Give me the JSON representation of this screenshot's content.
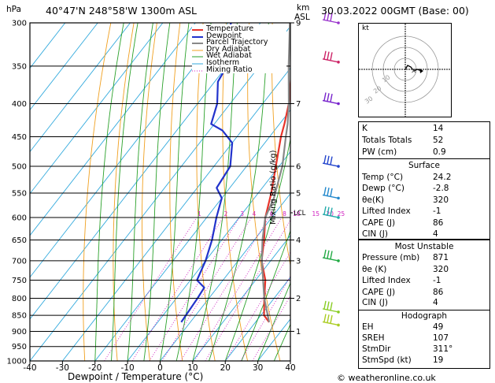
{
  "header": {
    "hpa_label": "hPa",
    "station": "40°47'N 248°58'W 1300m ASL",
    "km_label": "km",
    "asl_label": "ASL",
    "datetime": "30.03.2022 00GMT (Base: 00)"
  },
  "legend": [
    {
      "label": "Temperature",
      "color": "#e8332a"
    },
    {
      "label": "Dewpoint",
      "color": "#2233cc"
    },
    {
      "label": "Parcel Trajectory",
      "color": "#888888"
    },
    {
      "label": "Dry Adiabat",
      "color": "#f0a020"
    },
    {
      "label": "Wet Adiabat",
      "color": "#2aa12a"
    },
    {
      "label": "Isotherm",
      "color": "#33aadd"
    },
    {
      "label": "Mixing Ratio",
      "color": "#d020c0"
    }
  ],
  "chart_data": {
    "type": "line",
    "title": "40°47'N 248°58'W 1300m ASL",
    "xlabel": "Dewpoint / Temperature (°C)",
    "ylabel": "hPa",
    "xlim": [
      -40,
      40
    ],
    "x_ticks": [
      "-40",
      "-30",
      "-20",
      "-10",
      "0",
      "10",
      "20",
      "30",
      "40"
    ],
    "pressure_levels": [
      "300",
      "350",
      "400",
      "450",
      "500",
      "550",
      "600",
      "650",
      "700",
      "750",
      "800",
      "850",
      "900",
      "950",
      "1000"
    ],
    "km_ticks": [
      {
        "p": 300,
        "label": "9"
      },
      {
        "p": 400,
        "label": "7"
      },
      {
        "p": 500,
        "label": "6"
      },
      {
        "p": 550,
        "label": "5"
      },
      {
        "p": 650,
        "label": "4"
      },
      {
        "p": 700,
        "label": "3"
      },
      {
        "p": 800,
        "label": "2"
      },
      {
        "p": 900,
        "label": "1"
      }
    ],
    "lcl_label": "LCL",
    "lcl_pressure": 590,
    "mixing_ratio_label": "Mixing Ratio (g/kg)",
    "mixing_ratios": [
      {
        "value": 1,
        "label": "1"
      },
      {
        "value": 2,
        "label": "2"
      },
      {
        "value": 3,
        "label": "3"
      },
      {
        "value": 4,
        "label": "4"
      },
      {
        "value": 6,
        "label": "6"
      },
      {
        "value": 8,
        "label": "8"
      },
      {
        "value": 10,
        "label": "10"
      },
      {
        "value": 15,
        "label": "15"
      },
      {
        "value": 20,
        "label": "20"
      },
      {
        "value": 25,
        "label": "25"
      }
    ],
    "series": [
      {
        "name": "Temperature",
        "color": "#e8332a",
        "points": [
          [
            871,
            24.2
          ],
          [
            850,
            21
          ],
          [
            800,
            17
          ],
          [
            750,
            13
          ],
          [
            700,
            7.2
          ],
          [
            650,
            3
          ],
          [
            600,
            -2
          ],
          [
            550,
            -6
          ],
          [
            500,
            -11
          ],
          [
            450,
            -16.5
          ],
          [
            430,
            -18.5
          ],
          [
            400,
            -22
          ],
          [
            350,
            -30
          ],
          [
            300,
            -38
          ]
        ]
      },
      {
        "name": "Dewpoint",
        "color": "#2233cc",
        "points": [
          [
            871,
            -2.8
          ],
          [
            850,
            -3
          ],
          [
            800,
            -3.5
          ],
          [
            770,
            -4
          ],
          [
            750,
            -8
          ],
          [
            700,
            -10
          ],
          [
            650,
            -13
          ],
          [
            600,
            -17
          ],
          [
            560,
            -20
          ],
          [
            540,
            -24
          ],
          [
            520,
            -24.5
          ],
          [
            500,
            -25
          ],
          [
            460,
            -30
          ],
          [
            440,
            -36
          ],
          [
            430,
            -41
          ],
          [
            400,
            -44
          ],
          [
            370,
            -49
          ],
          [
            350,
            -50
          ],
          [
            330,
            -57
          ],
          [
            310,
            -58
          ],
          [
            300,
            -59
          ]
        ]
      },
      {
        "name": "Parcel Trajectory",
        "color": "#888888",
        "points": [
          [
            871,
            24.2
          ],
          [
            800,
            17
          ],
          [
            700,
            7.3
          ],
          [
            650,
            2.5
          ],
          [
            600,
            -2
          ],
          [
            560,
            -4
          ],
          [
            500,
            -9
          ],
          [
            450,
            -15
          ],
          [
            430,
            -17.5
          ],
          [
            400,
            -22
          ],
          [
            350,
            -31
          ],
          [
            300,
            -41
          ]
        ]
      }
    ]
  },
  "footer": {
    "x_label": "Dewpoint / Temperature (°C)",
    "credit": "© weatheronline.co.uk"
  },
  "hodograph": {
    "kt_label": "kt",
    "ring_labels": [
      "10",
      "20",
      "30"
    ]
  },
  "indices": {
    "rows": [
      {
        "key": "K",
        "value": "14"
      },
      {
        "key": "Totals Totals",
        "value": "52"
      },
      {
        "key": "PW (cm)",
        "value": "0.9"
      }
    ]
  },
  "surface": {
    "title": "Surface",
    "rows": [
      {
        "key": "Temp (°C)",
        "value": "24.2"
      },
      {
        "key": "Dewp (°C)",
        "value": "-2.8"
      },
      {
        "key": "θe(K)",
        "value": "320"
      },
      {
        "key": "Lifted Index",
        "value": "-1"
      },
      {
        "key": "CAPE (J)",
        "value": "86"
      },
      {
        "key": "CIN (J)",
        "value": "4"
      }
    ]
  },
  "most_unstable": {
    "title": "Most Unstable",
    "rows": [
      {
        "key": "Pressure (mb)",
        "value": "871"
      },
      {
        "key": "θe (K)",
        "value": "320"
      },
      {
        "key": "Lifted Index",
        "value": "-1"
      },
      {
        "key": "CAPE (J)",
        "value": "86"
      },
      {
        "key": "CIN (J)",
        "value": "4"
      }
    ]
  },
  "hodograph_table": {
    "title": "Hodograph",
    "rows": [
      {
        "key": "EH",
        "value": "49"
      },
      {
        "key": "SREH",
        "value": "107"
      },
      {
        "key": "StmDir",
        "value": "311°"
      },
      {
        "key": "StmSpd (kt)",
        "value": "19"
      }
    ]
  }
}
